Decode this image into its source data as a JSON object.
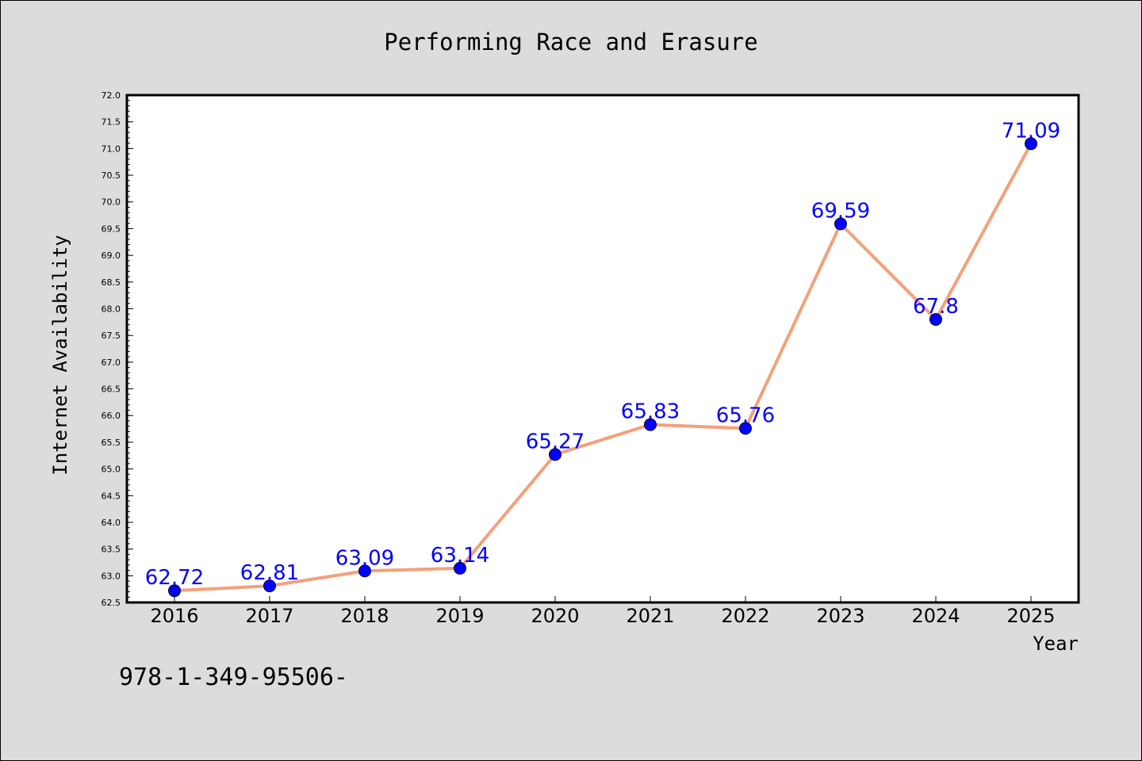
{
  "chart_data": {
    "type": "line",
    "title": "Performing Race and Erasure",
    "xlabel": "Year",
    "ylabel": "Internet Availability",
    "categories": [
      "2016",
      "2017",
      "2018",
      "2019",
      "2020",
      "2021",
      "2022",
      "2023",
      "2024",
      "2025"
    ],
    "series": [
      {
        "values": [
          62.72,
          62.81,
          63.09,
          63.14,
          65.27,
          65.83,
          65.76,
          69.59,
          67.8,
          71.09
        ],
        "data_labels": [
          "62.72",
          "62.81",
          "63.09",
          "63.14",
          "65.27",
          "65.83",
          "65.76",
          "69.59",
          "67.8",
          "71.09"
        ],
        "line_color": "#f4a07a",
        "marker_color": "#0000ff"
      }
    ],
    "ylim": [
      62.5,
      72.0
    ],
    "yticks": [
      "62.5",
      "63.0",
      "63.5",
      "64.0",
      "64.5",
      "65.0",
      "65.5",
      "66.0",
      "66.5",
      "67.0",
      "67.5",
      "68.0",
      "68.5",
      "69.0",
      "69.5",
      "70.0",
      "70.5",
      "71.0",
      "71.5",
      "72.0"
    ],
    "grid": false,
    "legend": "none"
  },
  "footer": {
    "text": "978-1-349-95506-"
  }
}
